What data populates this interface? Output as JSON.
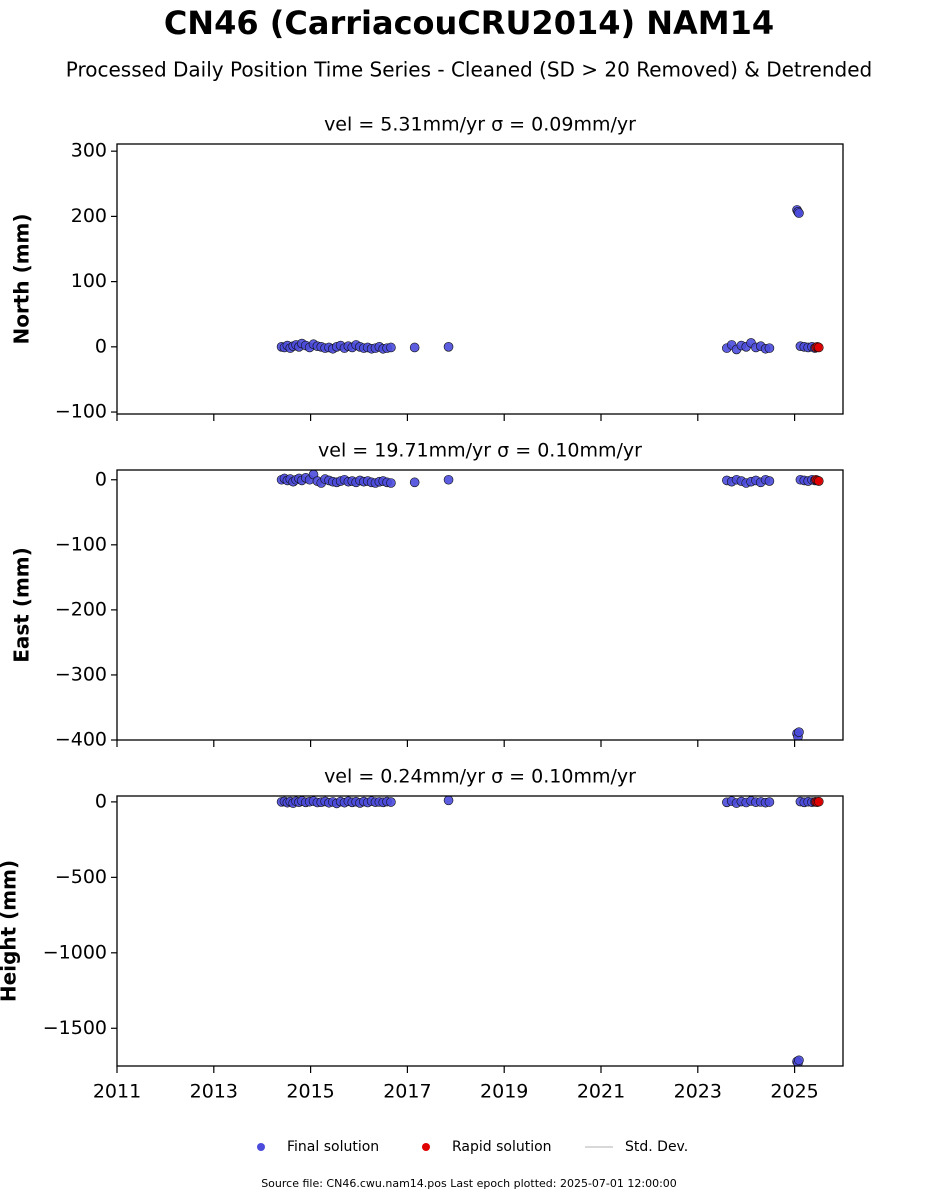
{
  "title": "CN46 (CarriacouCRU2014) NAM14",
  "subtitle": "Processed Daily Position Time Series - Cleaned (SD > 20 Removed) & Detrended",
  "footer": "Source file: CN46.cwu.nam14.pos  Last epoch plotted: 2025-07-01 12:00:00",
  "chart_data": [
    {
      "type": "scatter",
      "title": "vel = 5.31mm/yr   σ = 0.09mm/yr",
      "y_label": "North (mm)",
      "xlim": [
        2011,
        2026
      ],
      "xticks": [
        2011,
        2013,
        2015,
        2017,
        2019,
        2021,
        2023,
        2025
      ],
      "show_xtick_labels": false,
      "ylim": [
        -103,
        311
      ],
      "yticks": [
        {
          "value": -100,
          "label": "−100"
        },
        0,
        100,
        200,
        300
      ],
      "series": [
        {
          "name": "Final solution",
          "color": "#4b4bdc",
          "x": [
            2014.4,
            2014.46,
            2014.52,
            2014.58,
            2014.64,
            2014.7,
            2014.76,
            2014.82,
            2014.9,
            2014.98,
            2015.06,
            2015.14,
            2015.22,
            2015.3,
            2015.38,
            2015.46,
            2015.54,
            2015.62,
            2015.7,
            2015.78,
            2015.86,
            2015.94,
            2016.02,
            2016.1,
            2016.18,
            2016.26,
            2016.34,
            2016.42,
            2016.5,
            2016.58,
            2016.66,
            2017.15,
            2017.85,
            2023.6,
            2023.7,
            2023.8,
            2023.9,
            2024.0,
            2024.1,
            2024.2,
            2024.3,
            2024.4,
            2024.48,
            2025.05,
            2025.07,
            2025.09,
            2025.12,
            2025.2,
            2025.28,
            2025.36,
            2025.42
          ],
          "values": [
            0,
            -1,
            2,
            -2,
            1,
            3,
            0,
            5,
            2,
            -1,
            4,
            1,
            0,
            -2,
            -1,
            -3,
            0,
            2,
            -2,
            1,
            -1,
            3,
            0,
            -2,
            -1,
            -3,
            -2,
            0,
            -3,
            -2,
            -1,
            -1,
            0,
            -2,
            3,
            -4,
            2,
            0,
            6,
            -1,
            1,
            -3,
            -2,
            210,
            207,
            205,
            1,
            0,
            -1,
            0,
            -2
          ]
        },
        {
          "name": "Rapid solution",
          "color": "#e00000",
          "x": [
            2025.44,
            2025.47,
            2025.5
          ],
          "values": [
            -1,
            0,
            -1
          ]
        },
        {
          "name": "Std. Dev.",
          "color": "#cccccc",
          "x": [],
          "values": []
        }
      ]
    },
    {
      "type": "scatter",
      "title": "vel = 19.71mm/yr   σ = 0.10mm/yr",
      "y_label": "East (mm)",
      "xlim": [
        2011,
        2026
      ],
      "xticks": [
        2011,
        2013,
        2015,
        2017,
        2019,
        2021,
        2023,
        2025
      ],
      "show_xtick_labels": false,
      "ylim": [
        -400,
        15
      ],
      "yticks": [
        {
          "value": -400,
          "label": "−400"
        },
        {
          "value": -300,
          "label": "−300"
        },
        {
          "value": -200,
          "label": "−200"
        },
        {
          "value": -100,
          "label": "−100"
        },
        0
      ],
      "series": [
        {
          "name": "Final solution",
          "color": "#4b4bdc",
          "x": [
            2014.4,
            2014.46,
            2014.52,
            2014.58,
            2014.64,
            2014.7,
            2014.76,
            2014.82,
            2014.9,
            2014.98,
            2015.06,
            2015.14,
            2015.22,
            2015.3,
            2015.38,
            2015.46,
            2015.54,
            2015.62,
            2015.7,
            2015.78,
            2015.86,
            2015.94,
            2016.02,
            2016.1,
            2016.18,
            2016.26,
            2016.34,
            2016.42,
            2016.5,
            2016.58,
            2016.66,
            2017.15,
            2017.85,
            2023.6,
            2023.7,
            2023.8,
            2023.9,
            2024.0,
            2024.1,
            2024.2,
            2024.3,
            2024.4,
            2024.48,
            2025.05,
            2025.07,
            2025.09,
            2025.12,
            2025.2,
            2025.28,
            2025.36,
            2025.42
          ],
          "values": [
            0,
            2,
            -1,
            1,
            -3,
            0,
            2,
            -1,
            3,
            0,
            8,
            -2,
            -5,
            1,
            -1,
            -3,
            -4,
            -2,
            0,
            -3,
            -2,
            -4,
            -1,
            -3,
            -2,
            -4,
            -5,
            -3,
            -2,
            -4,
            -5,
            -4,
            0,
            -1,
            -3,
            0,
            -2,
            -5,
            -3,
            -1,
            -4,
            0,
            -2,
            -390,
            -395,
            -388,
            0,
            -1,
            -2,
            0,
            -1
          ]
        },
        {
          "name": "Rapid solution",
          "color": "#e00000",
          "x": [
            2025.44,
            2025.47,
            2025.5
          ],
          "values": [
            0,
            -1,
            -2
          ]
        },
        {
          "name": "Std. Dev.",
          "color": "#cccccc",
          "x": [],
          "values": []
        }
      ]
    },
    {
      "type": "scatter",
      "title": "vel = 0.24mm/yr   σ = 0.10mm/yr",
      "y_label": "Height (mm)",
      "xlim": [
        2011,
        2026
      ],
      "xticks": [
        2011,
        2013,
        2015,
        2017,
        2019,
        2021,
        2023,
        2025
      ],
      "show_xtick_labels": true,
      "ylim": [
        -1750,
        39
      ],
      "yticks": [
        {
          "value": -1500,
          "label": "−1500"
        },
        {
          "value": -1000,
          "label": "−1000"
        },
        {
          "value": -500,
          "label": "−500"
        },
        0
      ],
      "series": [
        {
          "name": "Final solution",
          "color": "#4b4bdc",
          "x": [
            2014.4,
            2014.46,
            2014.52,
            2014.58,
            2014.64,
            2014.7,
            2014.76,
            2014.82,
            2014.9,
            2014.98,
            2015.06,
            2015.14,
            2015.22,
            2015.3,
            2015.38,
            2015.46,
            2015.54,
            2015.62,
            2015.7,
            2015.78,
            2015.86,
            2015.94,
            2016.02,
            2016.1,
            2016.18,
            2016.26,
            2016.34,
            2016.42,
            2016.5,
            2016.58,
            2016.66,
            2017.15,
            2017.85,
            2023.6,
            2023.7,
            2023.8,
            2023.9,
            2024.0,
            2024.1,
            2024.2,
            2024.3,
            2024.4,
            2024.48,
            2025.05,
            2025.07,
            2025.09,
            2025.12,
            2025.2,
            2025.28,
            2025.36,
            2025.42
          ],
          "values": [
            0,
            3,
            -5,
            2,
            -8,
            4,
            -2,
            6,
            -3,
            1,
            5,
            -4,
            -2,
            3,
            -6,
            0,
            -10,
            2,
            -5,
            4,
            -3,
            1,
            -7,
            2,
            -4,
            5,
            -2,
            0,
            -3,
            2,
            -1,
            null,
            10,
            -3,
            5,
            -8,
            2,
            -4,
            6,
            -2,
            0,
            -5,
            -1,
            -1720,
            -1730,
            -1712,
            2,
            -3,
            1,
            -2,
            0
          ]
        },
        {
          "name": "Rapid solution",
          "color": "#e00000",
          "x": [
            2025.44,
            2025.47,
            2025.5
          ],
          "values": [
            0,
            -2,
            1
          ]
        },
        {
          "name": "Std. Dev.",
          "color": "#cccccc",
          "x": [],
          "values": []
        }
      ]
    }
  ]
}
